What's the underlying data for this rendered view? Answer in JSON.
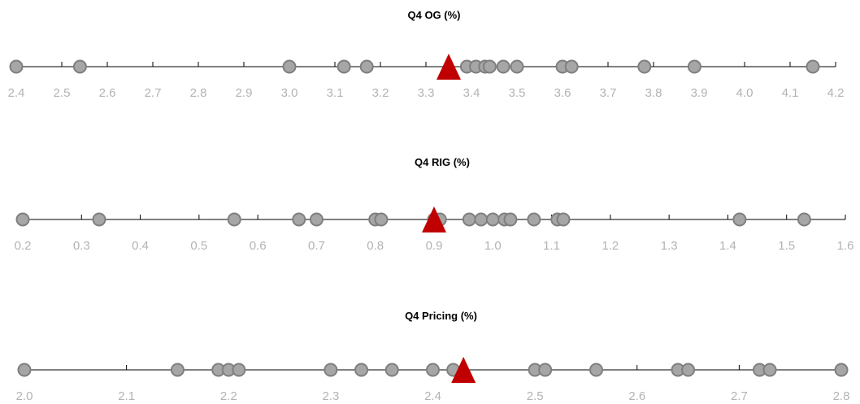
{
  "chart_data": [
    {
      "type": "scatter",
      "title": "Q4 OG (%)",
      "xlabel": "",
      "ylabel": "",
      "xlim": [
        2.4,
        4.2
      ],
      "ticks": [
        2.4,
        2.5,
        2.6,
        2.7,
        2.8,
        2.9,
        3.0,
        3.1,
        3.2,
        3.3,
        3.4,
        3.5,
        3.6,
        3.7,
        3.8,
        3.9,
        4.0,
        4.1,
        4.2
      ],
      "tick_labels": [
        "2.4",
        "2.5",
        "2.6",
        "2.7",
        "2.8",
        "2.9",
        "3.0",
        "3.1",
        "3.2",
        "3.3",
        "3.4",
        "3.5",
        "3.6",
        "3.7",
        "3.8",
        "3.9",
        "4.0",
        "4.1",
        "4.2"
      ],
      "points": [
        2.4,
        2.54,
        3.0,
        3.12,
        3.17,
        3.39,
        3.41,
        3.43,
        3.44,
        3.47,
        3.5,
        3.6,
        3.62,
        3.78,
        3.89,
        4.15
      ],
      "marker": 3.35,
      "grid": false
    },
    {
      "type": "scatter",
      "title": "Q4 RIG (%)",
      "xlabel": "",
      "ylabel": "",
      "xlim": [
        0.2,
        1.6
      ],
      "ticks": [
        0.2,
        0.3,
        0.4,
        0.5,
        0.6,
        0.7,
        0.8,
        0.9,
        1.0,
        1.1,
        1.2,
        1.3,
        1.4,
        1.5,
        1.6
      ],
      "tick_labels": [
        "0.2",
        "0.3",
        "0.4",
        "0.5",
        "0.6",
        "0.7",
        "0.8",
        "0.9",
        "1.0",
        "1.1",
        "1.2",
        "1.3",
        "1.4",
        "1.5",
        "1.6"
      ],
      "points": [
        0.2,
        0.33,
        0.56,
        0.67,
        0.7,
        0.8,
        0.81,
        0.9,
        0.91,
        0.96,
        0.98,
        1.0,
        1.02,
        1.03,
        1.07,
        1.11,
        1.12,
        1.42,
        1.53
      ],
      "marker": 0.9,
      "grid": false
    },
    {
      "type": "scatter",
      "title": "Q4 Pricing (%)",
      "xlabel": "",
      "ylabel": "",
      "xlim": [
        2.0,
        2.8
      ],
      "ticks": [
        2.0,
        2.1,
        2.2,
        2.3,
        2.4,
        2.5,
        2.6,
        2.7,
        2.8
      ],
      "tick_labels": [
        "2.0",
        "2.1",
        "2.2",
        "2.3",
        "2.4",
        "2.5",
        "2.6",
        "2.7",
        "2.8"
      ],
      "points": [
        2.0,
        2.15,
        2.19,
        2.2,
        2.21,
        2.3,
        2.33,
        2.36,
        2.4,
        2.42,
        2.5,
        2.51,
        2.56,
        2.64,
        2.65,
        2.72,
        2.73,
        2.8
      ],
      "marker": 2.43,
      "grid": false
    }
  ],
  "colors": {
    "point_fill": "#a6a6a6",
    "point_stroke": "#7f7f7f",
    "marker": "#c00000",
    "axis": "#000000",
    "tick_label": "#b3b3b3"
  }
}
